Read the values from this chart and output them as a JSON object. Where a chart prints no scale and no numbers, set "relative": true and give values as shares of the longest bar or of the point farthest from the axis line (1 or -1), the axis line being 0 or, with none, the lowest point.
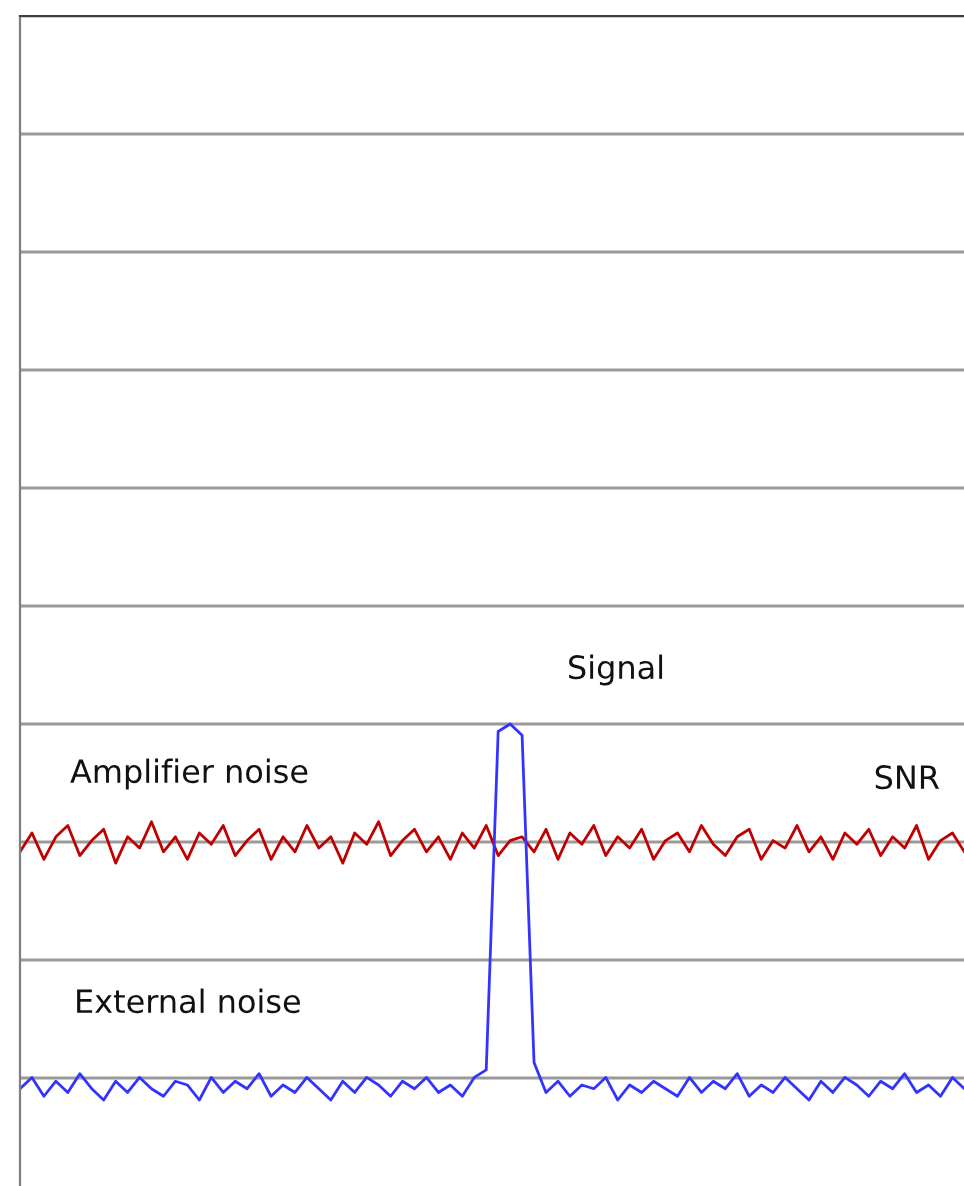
{
  "chart_data": {
    "type": "line",
    "relative": true,
    "grid": "y",
    "legend": false,
    "categories": [
      null,
      null,
      null,
      null,
      null,
      null,
      null,
      null,
      null,
      null,
      null,
      null,
      null,
      null,
      null,
      null,
      null,
      null,
      null,
      null,
      null,
      null,
      null,
      null,
      null,
      null,
      null,
      null,
      null,
      null,
      null,
      null,
      null,
      null,
      null,
      null,
      null,
      null,
      null,
      null,
      null,
      null,
      null,
      null,
      null,
      null,
      null,
      null,
      null,
      null,
      null,
      null,
      null,
      null,
      null,
      null,
      null,
      null,
      null,
      null,
      null,
      null,
      null,
      null,
      null,
      null,
      null,
      null,
      null,
      null,
      null,
      null,
      null,
      null,
      null,
      null,
      null,
      null,
      null,
      null
    ],
    "series": [
      {
        "color": "#c00000",
        "values": [
          0.66,
          0.71,
          0.64,
          0.7,
          0.73,
          0.65,
          0.69,
          0.72,
          0.63,
          0.7,
          0.67,
          0.74,
          0.66,
          0.7,
          0.64,
          0.71,
          0.68,
          0.73,
          0.65,
          0.69,
          0.72,
          0.64,
          0.7,
          0.66,
          0.73,
          0.67,
          0.7,
          0.63,
          0.71,
          0.68,
          0.74,
          0.65,
          0.69,
          0.72,
          0.66,
          0.7,
          0.64,
          0.71,
          0.67,
          0.73,
          0.65,
          0.69,
          0.7,
          0.66,
          0.72,
          0.64,
          0.71,
          0.68,
          0.73,
          0.65,
          0.7,
          0.67,
          0.72,
          0.64,
          0.69,
          0.71,
          0.66,
          0.73,
          0.68,
          0.65,
          0.7,
          0.72,
          0.64,
          0.69,
          0.67,
          0.73,
          0.66,
          0.7,
          0.64,
          0.71,
          0.68,
          0.72,
          0.65,
          0.7,
          0.67,
          0.73,
          0.64,
          0.69,
          0.71,
          0.66
        ]
      },
      {
        "color": "#3333ff",
        "values": [
          0.03,
          0.06,
          0.01,
          0.05,
          0.02,
          0.07,
          0.03,
          0.0,
          0.05,
          0.02,
          0.06,
          0.03,
          0.01,
          0.05,
          0.04,
          0.0,
          0.06,
          0.02,
          0.05,
          0.03,
          0.07,
          0.01,
          0.04,
          0.02,
          0.06,
          0.03,
          0.0,
          0.05,
          0.02,
          0.06,
          0.04,
          0.01,
          0.05,
          0.03,
          0.06,
          0.02,
          0.04,
          0.01,
          0.06,
          0.08,
          0.98,
          1.0,
          0.97,
          0.1,
          0.02,
          0.05,
          0.01,
          0.04,
          0.03,
          0.06,
          0.0,
          0.04,
          0.02,
          0.05,
          0.03,
          0.01,
          0.06,
          0.02,
          0.05,
          0.03,
          0.07,
          0.01,
          0.04,
          0.02,
          0.06,
          0.03,
          0.0,
          0.05,
          0.02,
          0.06,
          0.04,
          0.01,
          0.05,
          0.03,
          0.07,
          0.02,
          0.04,
          0.01,
          0.06,
          0.03
        ]
      }
    ],
    "annotations": [
      "Signal",
      "Amplifier noise",
      "SNR",
      "External noise"
    ]
  }
}
